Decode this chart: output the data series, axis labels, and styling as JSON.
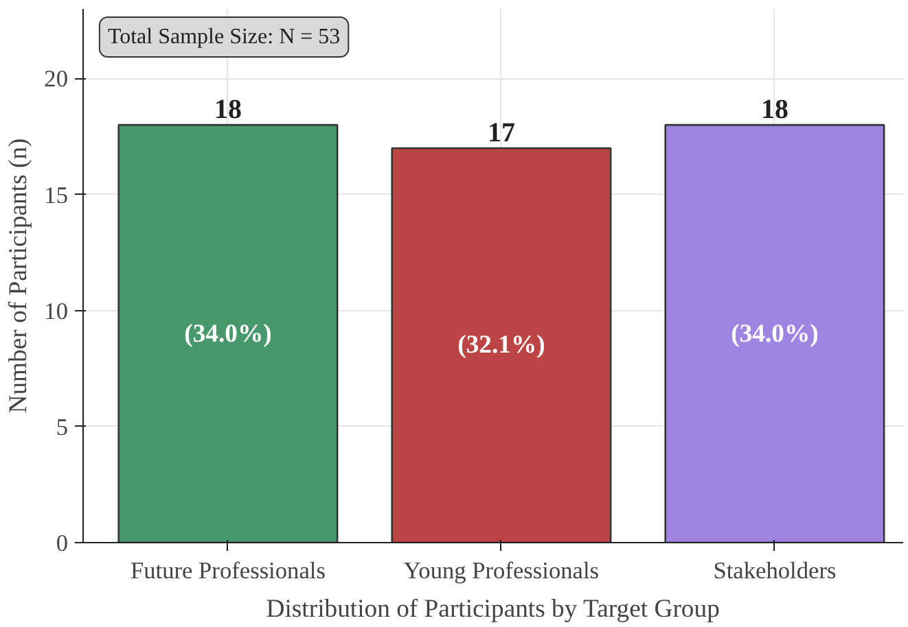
{
  "chart_data": {
    "type": "bar",
    "xlabel": "Distribution of Participants by Target Group",
    "ylabel": "Number of Participants (n)",
    "categories": [
      "Future Professionals",
      "Young Professionals",
      "Stakeholders"
    ],
    "values": [
      18,
      17,
      18
    ],
    "colors": [
      "#3f9265",
      "#b83a3a",
      "#9b7ddf"
    ],
    "ylim": [
      0,
      23
    ],
    "yticks": [
      0,
      5,
      10,
      15,
      20
    ],
    "grid": true,
    "data_labels": true,
    "annotations": [
      "Total Sample Size: N = 53",
      "(34.0%)",
      "(32.1%)",
      "(34.0%)"
    ]
  }
}
